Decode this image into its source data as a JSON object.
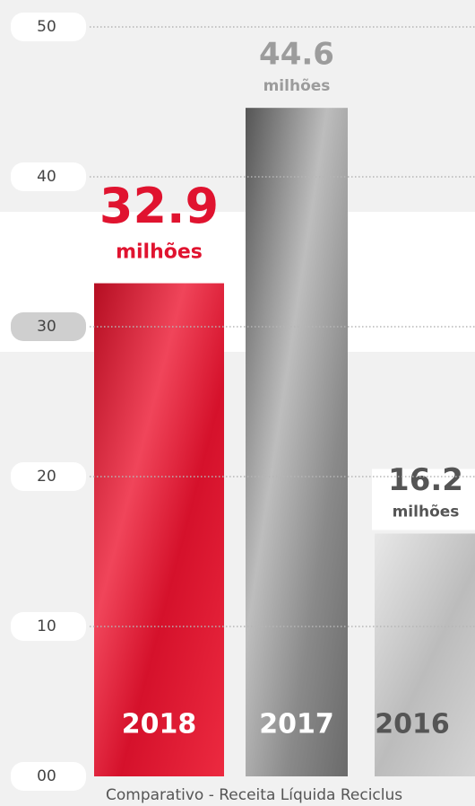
{
  "chart_data": {
    "type": "bar",
    "categories": [
      "2018",
      "2017",
      "2016"
    ],
    "values": [
      32.9,
      44.6,
      16.2
    ],
    "colors": [
      "#e0132f",
      "#7c7c7c",
      "#c9c9c9"
    ],
    "value_unit": "milhões",
    "ylim": [
      0,
      50
    ],
    "yticks": [
      {
        "value": 0,
        "label": "00"
      },
      10,
      20,
      30,
      40,
      50
    ],
    "grid": true,
    "caption": "Comparativo - Receita Líquida Reciclus"
  }
}
